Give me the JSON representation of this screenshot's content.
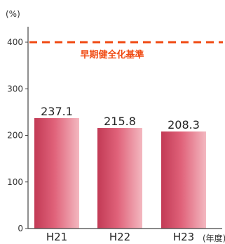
{
  "chart_data": {
    "type": "bar",
    "categories": [
      "H21",
      "H22",
      "H23"
    ],
    "values": [
      237.1,
      215.8,
      208.3
    ],
    "value_labels": [
      "237.1",
      "215.8",
      "208.3"
    ],
    "ylabel": "(%)",
    "xlabel": "(年度)",
    "ylim": [
      0,
      420
    ],
    "yticks": [
      0,
      100,
      200,
      300,
      400
    ],
    "reference_line": {
      "value": 400,
      "label": "早期健全化基準",
      "style": "dashed"
    },
    "grid": false,
    "legend": "none"
  },
  "colors": {
    "bar_light": "#f3b8c0",
    "bar_mid": "#e0627a",
    "bar_dark": "#c23a55",
    "reference": "#f04a12",
    "axis": "#444444"
  }
}
